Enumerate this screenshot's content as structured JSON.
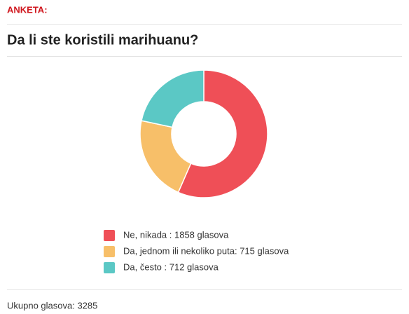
{
  "header": "ANKETA:",
  "chart_data": {
    "type": "donut",
    "title": "Da li ste koristili marihuanu?",
    "categories": [
      "Ne, nikada : 1858 glasova",
      "Da, jednom ili nekoliko puta: 715 glasova",
      "Da, često : 712 glasova"
    ],
    "values": [
      1858,
      715,
      712
    ],
    "colors": [
      "#ef4f57",
      "#f7bf69",
      "#5bc8c5"
    ]
  },
  "footer": "Ukupno glasova: 3285"
}
